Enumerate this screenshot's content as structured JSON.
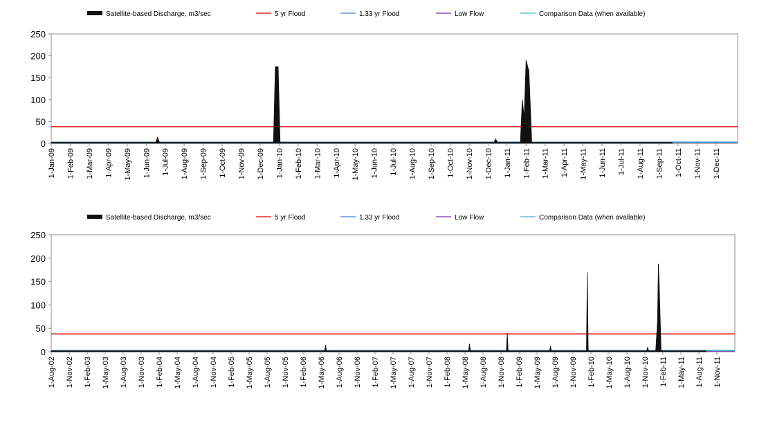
{
  "legend": [
    {
      "label": "Satellite-based Discharge, m3/sec",
      "color": "#111111",
      "kind": "area"
    },
    {
      "label": "5 yr Flood",
      "color": "#e00000",
      "kind": "line"
    },
    {
      "label": "1.33 yr Flood",
      "color": "#4a7ebb",
      "kind": "line"
    },
    {
      "label": "Low Flow",
      "color": "#7030a0",
      "kind": "line"
    },
    {
      "label": "Comparison Data (when available)",
      "color": "#4bacc6",
      "kind": "line"
    }
  ],
  "chart_data": [
    {
      "type": "area",
      "title": "",
      "xlabel": "",
      "ylabel": "",
      "ylim": [
        0,
        250
      ],
      "yticks": [
        "0",
        "50",
        "100",
        "150",
        "200",
        "250"
      ],
      "grid": false,
      "legend_position": "top",
      "categories": [
        "1-Jan-09",
        "1-Feb-09",
        "1-Mar-09",
        "1-Apr-09",
        "1-May-09",
        "1-Jun-09",
        "1-Jul-09",
        "1-Aug-09",
        "1-Sep-09",
        "1-Oct-09",
        "1-Nov-09",
        "1-Dec-09",
        "1-Jan-10",
        "1-Feb-10",
        "1-Mar-10",
        "1-Apr-10",
        "1-May-10",
        "1-Jun-10",
        "1-Jul-10",
        "1-Aug-10",
        "1-Sep-10",
        "1-Oct-10",
        "1-Nov-10",
        "1-Dec-10",
        "1-Jan-11",
        "1-Feb-11",
        "1-Mar-11",
        "1-Apr-11",
        "1-May-11",
        "1-Jun-11",
        "1-Jul-11",
        "1-Aug-11",
        "1-Sep-11",
        "1-Oct-11",
        "1-Nov-11",
        "1-Dec-11"
      ],
      "discharge": [
        [
          0,
          2
        ],
        [
          5.5,
          2
        ],
        [
          5.6,
          14
        ],
        [
          5.7,
          2
        ],
        [
          11.7,
          2
        ],
        [
          11.8,
          175
        ],
        [
          11.95,
          175
        ],
        [
          12.05,
          2
        ],
        [
          23.3,
          2
        ],
        [
          23.4,
          10
        ],
        [
          23.5,
          2
        ],
        [
          24.7,
          2
        ],
        [
          24.8,
          100
        ],
        [
          24.9,
          60
        ],
        [
          25.0,
          190
        ],
        [
          25.15,
          165
        ],
        [
          25.3,
          2
        ],
        [
          32.7,
          2
        ]
      ],
      "series": [
        {
          "name": "5 yr Flood",
          "value": 38
        },
        {
          "name": "1.33 yr Flood",
          "value": 3
        },
        {
          "name": "Low Flow",
          "value": 1
        },
        {
          "name": "Comparison Data (when available)",
          "value": 2
        }
      ]
    },
    {
      "type": "area",
      "title": "",
      "xlabel": "",
      "ylabel": "",
      "ylim": [
        0,
        250
      ],
      "yticks": [
        "0",
        "50",
        "100",
        "150",
        "200",
        "250"
      ],
      "grid": false,
      "legend_position": "top",
      "categories": [
        "1-Aug-02",
        "1-Nov-02",
        "1-Feb-03",
        "1-May-03",
        "1-Aug-03",
        "1-Nov-03",
        "1-Feb-04",
        "1-May-04",
        "1-Aug-04",
        "1-Nov-04",
        "1-Feb-05",
        "1-May-05",
        "1-Aug-05",
        "1-Nov-05",
        "1-Feb-06",
        "1-May-06",
        "1-Aug-06",
        "1-Nov-06",
        "1-Feb-07",
        "1-May-07",
        "1-Aug-07",
        "1-Nov-07",
        "1-Feb-08",
        "1-May-08",
        "1-Aug-08",
        "1-Nov-08",
        "1-Feb-09",
        "1-May-09",
        "1-Aug-09",
        "1-Nov-09",
        "1-Feb-10",
        "1-May-10",
        "1-Aug-10",
        "1-Nov-10",
        "1-Feb-11",
        "1-May-11",
        "1-Aug-11",
        "1-Nov-11"
      ],
      "discharge": [
        [
          0,
          2
        ],
        [
          15.2,
          2
        ],
        [
          15.25,
          15
        ],
        [
          15.3,
          2
        ],
        [
          23.2,
          2
        ],
        [
          23.25,
          17
        ],
        [
          23.3,
          2
        ],
        [
          25.3,
          2
        ],
        [
          25.35,
          40
        ],
        [
          25.4,
          2
        ],
        [
          27.7,
          2
        ],
        [
          27.75,
          12
        ],
        [
          27.8,
          2
        ],
        [
          29.75,
          2
        ],
        [
          29.8,
          170
        ],
        [
          29.85,
          2
        ],
        [
          33.1,
          2
        ],
        [
          33.15,
          10
        ],
        [
          33.2,
          2
        ],
        [
          33.6,
          2
        ],
        [
          33.7,
          65
        ],
        [
          33.75,
          188
        ],
        [
          33.8,
          140
        ],
        [
          33.9,
          2
        ],
        [
          36.4,
          2
        ]
      ],
      "series": [
        {
          "name": "5 yr Flood",
          "value": 38
        },
        {
          "name": "1.33 yr Flood",
          "value": 3
        },
        {
          "name": "Low Flow",
          "value": 1
        },
        {
          "name": "Comparison Data (when available)",
          "value": 2
        }
      ]
    }
  ]
}
